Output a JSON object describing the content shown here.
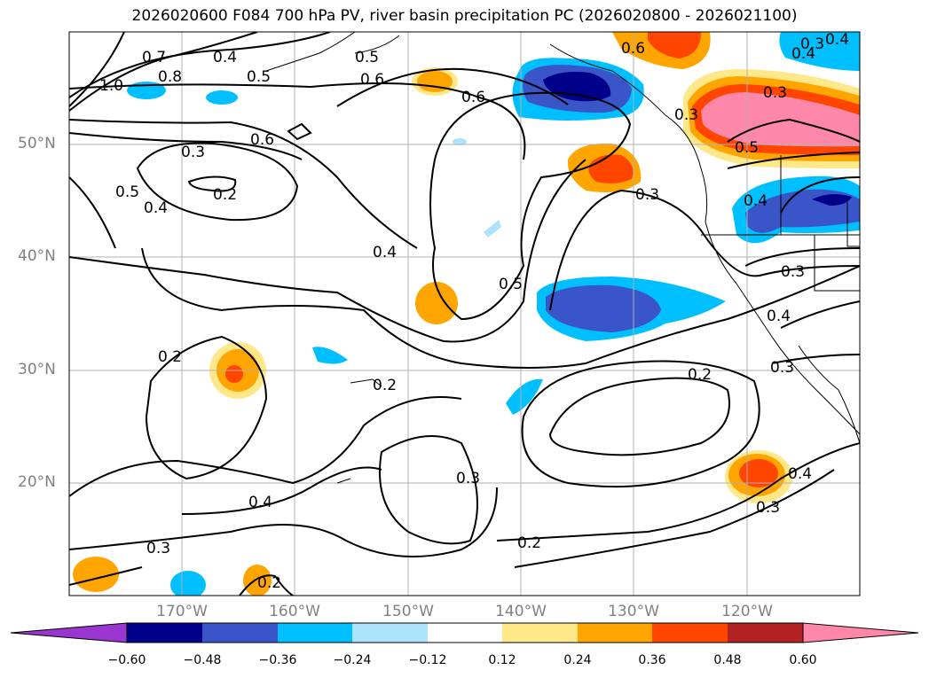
{
  "figure": {
    "title": "2026020600 F084 700 hPa PV, river basin precipitation PC (2026020800 - 2026021100)"
  },
  "axes": {
    "lat_labels": [
      "50°N",
      "40°N",
      "30°N",
      "20°N"
    ],
    "lon_labels": [
      "170°W",
      "160°W",
      "150°W",
      "140°W",
      "130°W",
      "120°W"
    ]
  },
  "colorbar": {
    "tick_labels": [
      "−0.60",
      "−0.48",
      "−0.36",
      "−0.24",
      "−0.12",
      "0.12",
      "0.24",
      "0.36",
      "0.48",
      "0.60"
    ],
    "colors": [
      "#9a35cf",
      "#00008b",
      "#3a55c8",
      "#00bfff",
      "#aee4fb",
      "#ffffff",
      "#ffe88a",
      "#ffa500",
      "#ff4500",
      "#b22222",
      "#ff88aa"
    ]
  },
  "contour_labels": [
    "0.7",
    "0.8",
    "1.0",
    "0.4",
    "0.5",
    "0.6",
    "0.6",
    "0.4",
    "0.6",
    "0.6",
    "0.3",
    "0.5",
    "0.3",
    "0.2",
    "0.5",
    "0.4",
    "0.4",
    "0.5",
    "0.3",
    "0.3",
    "0.4",
    "0.3",
    "0.3",
    "0.4",
    "0.3",
    "0.2",
    "0.2",
    "0.2",
    "0.3",
    "0.4",
    "0.3",
    "0.2",
    "0.2",
    "0.4",
    "0.3",
    "0.5",
    "0.4"
  ],
  "color_scheme": {
    "dark_navy": "#00008b",
    "blue": "#3a55c8",
    "cyan": "#00bfff",
    "light_blue": "#aee4fb",
    "yellow": "#ffe88a",
    "orange": "#ffa500",
    "red_orange": "#ff4500",
    "dark_red": "#b22222",
    "pink": "#ff88aa"
  }
}
